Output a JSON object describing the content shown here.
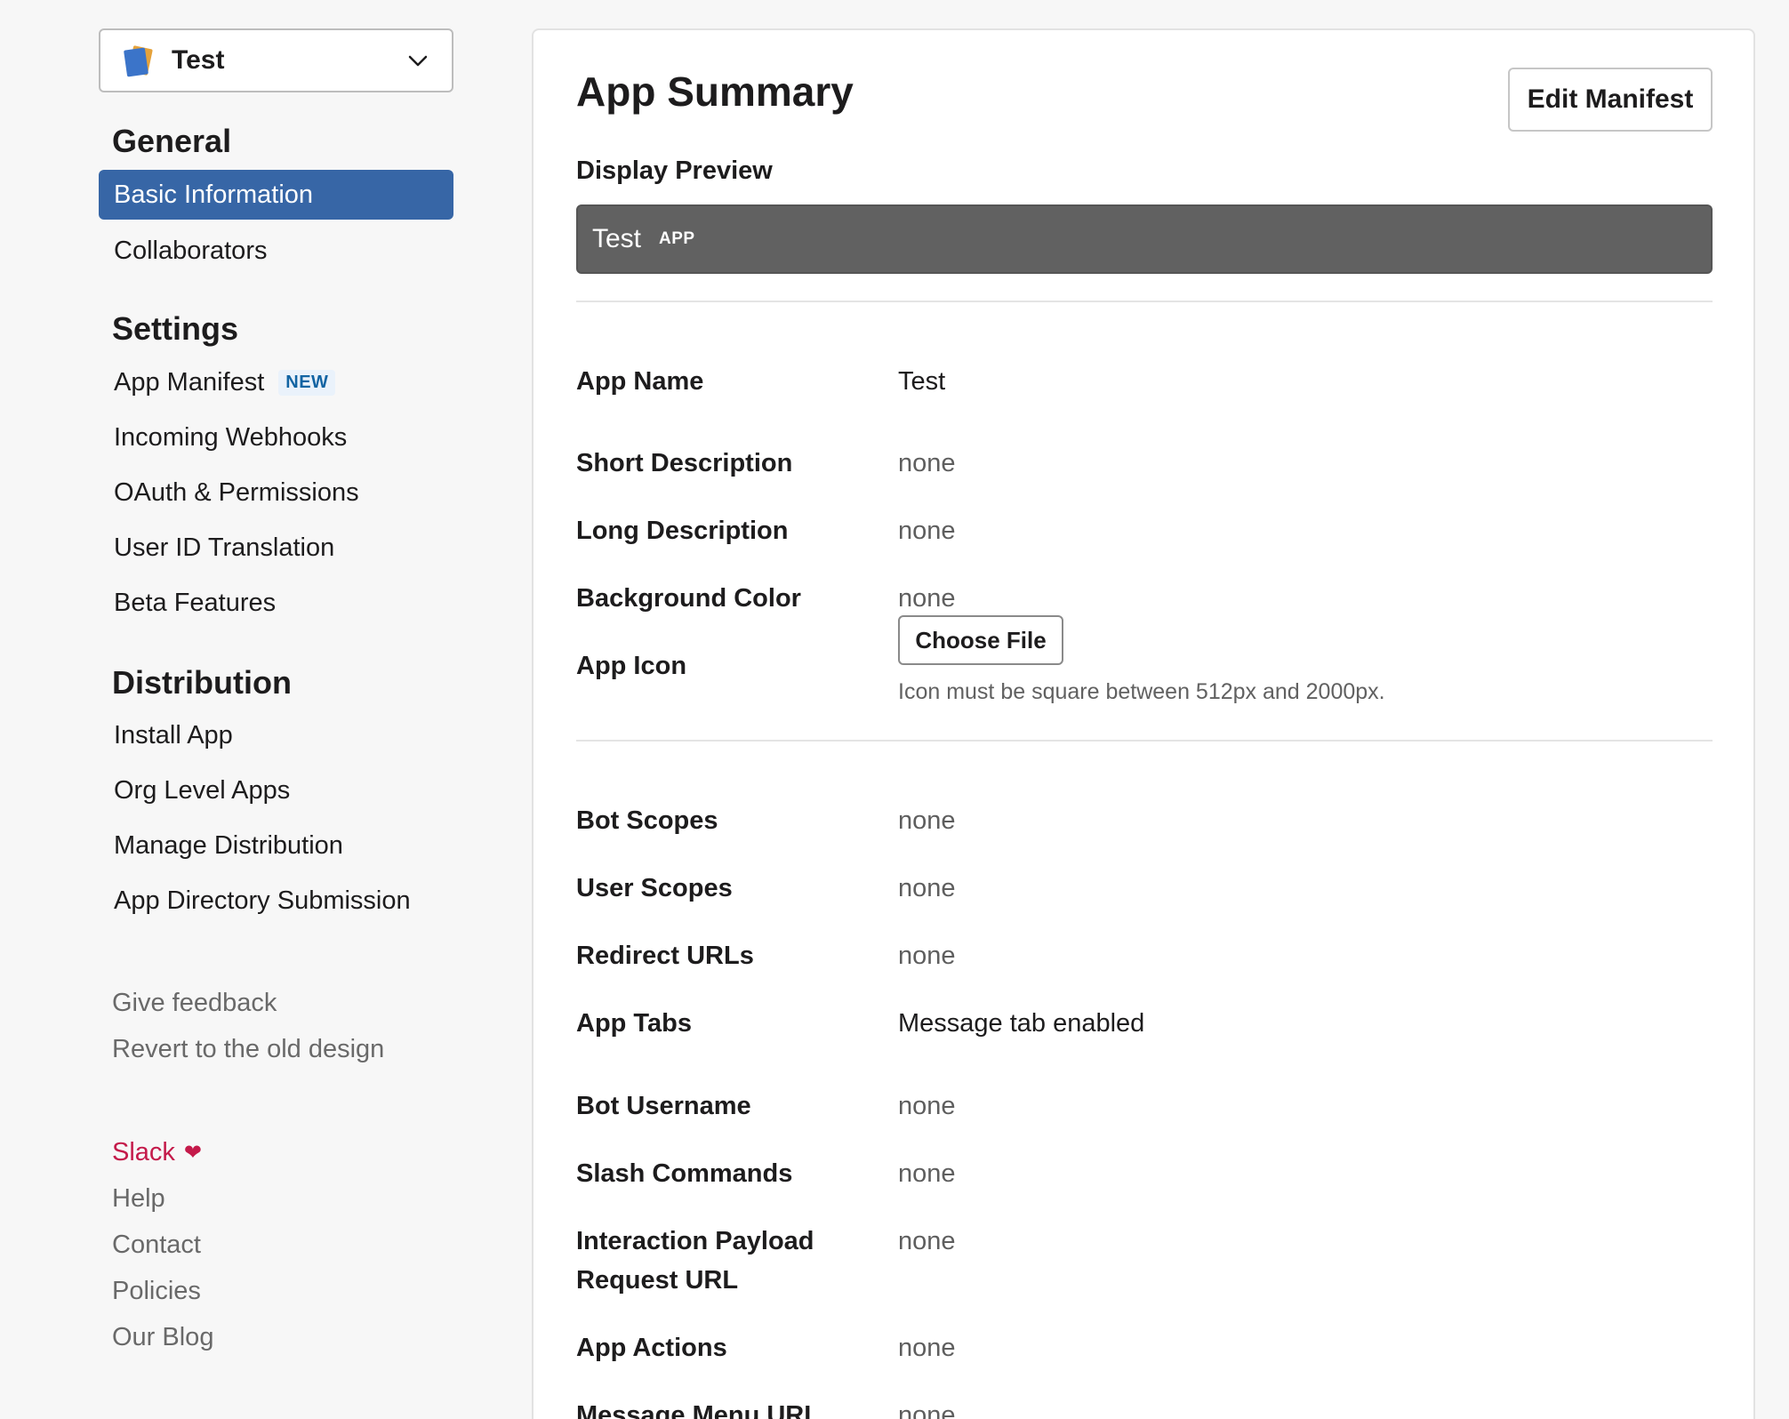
{
  "sidebar": {
    "app_select": {
      "name": "Test"
    },
    "sections": [
      {
        "title": "General",
        "items": [
          {
            "label": "Basic Information",
            "active": true
          },
          {
            "label": "Collaborators"
          }
        ]
      },
      {
        "title": "Settings",
        "items": [
          {
            "label": "App Manifest",
            "badge": "NEW"
          },
          {
            "label": "Incoming Webhooks"
          },
          {
            "label": "OAuth & Permissions"
          },
          {
            "label": "User ID Translation"
          },
          {
            "label": "Beta Features"
          }
        ]
      },
      {
        "title": "Distribution",
        "items": [
          {
            "label": "Install App"
          },
          {
            "label": "Org Level Apps"
          },
          {
            "label": "Manage Distribution"
          },
          {
            "label": "App Directory Submission"
          }
        ]
      }
    ],
    "feedback": {
      "give": "Give feedback",
      "revert": "Revert to the old design"
    },
    "footer": {
      "slack": "Slack",
      "help": "Help",
      "contact": "Contact",
      "policies": "Policies",
      "blog": "Our Blog"
    }
  },
  "main": {
    "title": "App Summary",
    "edit_manifest": "Edit Manifest",
    "display_preview": {
      "label": "Display Preview",
      "name": "Test",
      "tag": "APP"
    },
    "rows": {
      "app_name": {
        "label": "App Name",
        "value": "Test"
      },
      "short_description": {
        "label": "Short Description",
        "value": "none"
      },
      "long_description": {
        "label": "Long Description",
        "value": "none"
      },
      "background_color": {
        "label": "Background Color",
        "value": "none"
      },
      "app_icon": {
        "label": "App Icon",
        "button": "Choose File",
        "hint": "Icon must be square between 512px and 2000px."
      },
      "bot_scopes": {
        "label": "Bot Scopes",
        "value": "none"
      },
      "user_scopes": {
        "label": "User Scopes",
        "value": "none"
      },
      "redirect_urls": {
        "label": "Redirect URLs",
        "value": "none"
      },
      "app_tabs": {
        "label": "App Tabs",
        "value": "Message tab enabled"
      },
      "bot_username": {
        "label": "Bot Username",
        "value": "none"
      },
      "slash_commands": {
        "label": "Slash Commands",
        "value": "none"
      },
      "interaction_payload": {
        "label_line1": "Interaction Payload",
        "label_line2": "Request URL",
        "value": "none"
      },
      "app_actions": {
        "label": "App Actions",
        "value": "none"
      },
      "message_menu_url": {
        "label": "Message Menu URL",
        "value": "none"
      }
    }
  },
  "icons": {
    "app_icon": "book-stack-icon",
    "chevron": "chevron-down-icon",
    "heart": "heart-icon"
  },
  "colors": {
    "active_nav": "#3766a6",
    "preview_bar": "#616161",
    "slack_red": "#c41a4a",
    "badge_blue": "#1264a3"
  }
}
